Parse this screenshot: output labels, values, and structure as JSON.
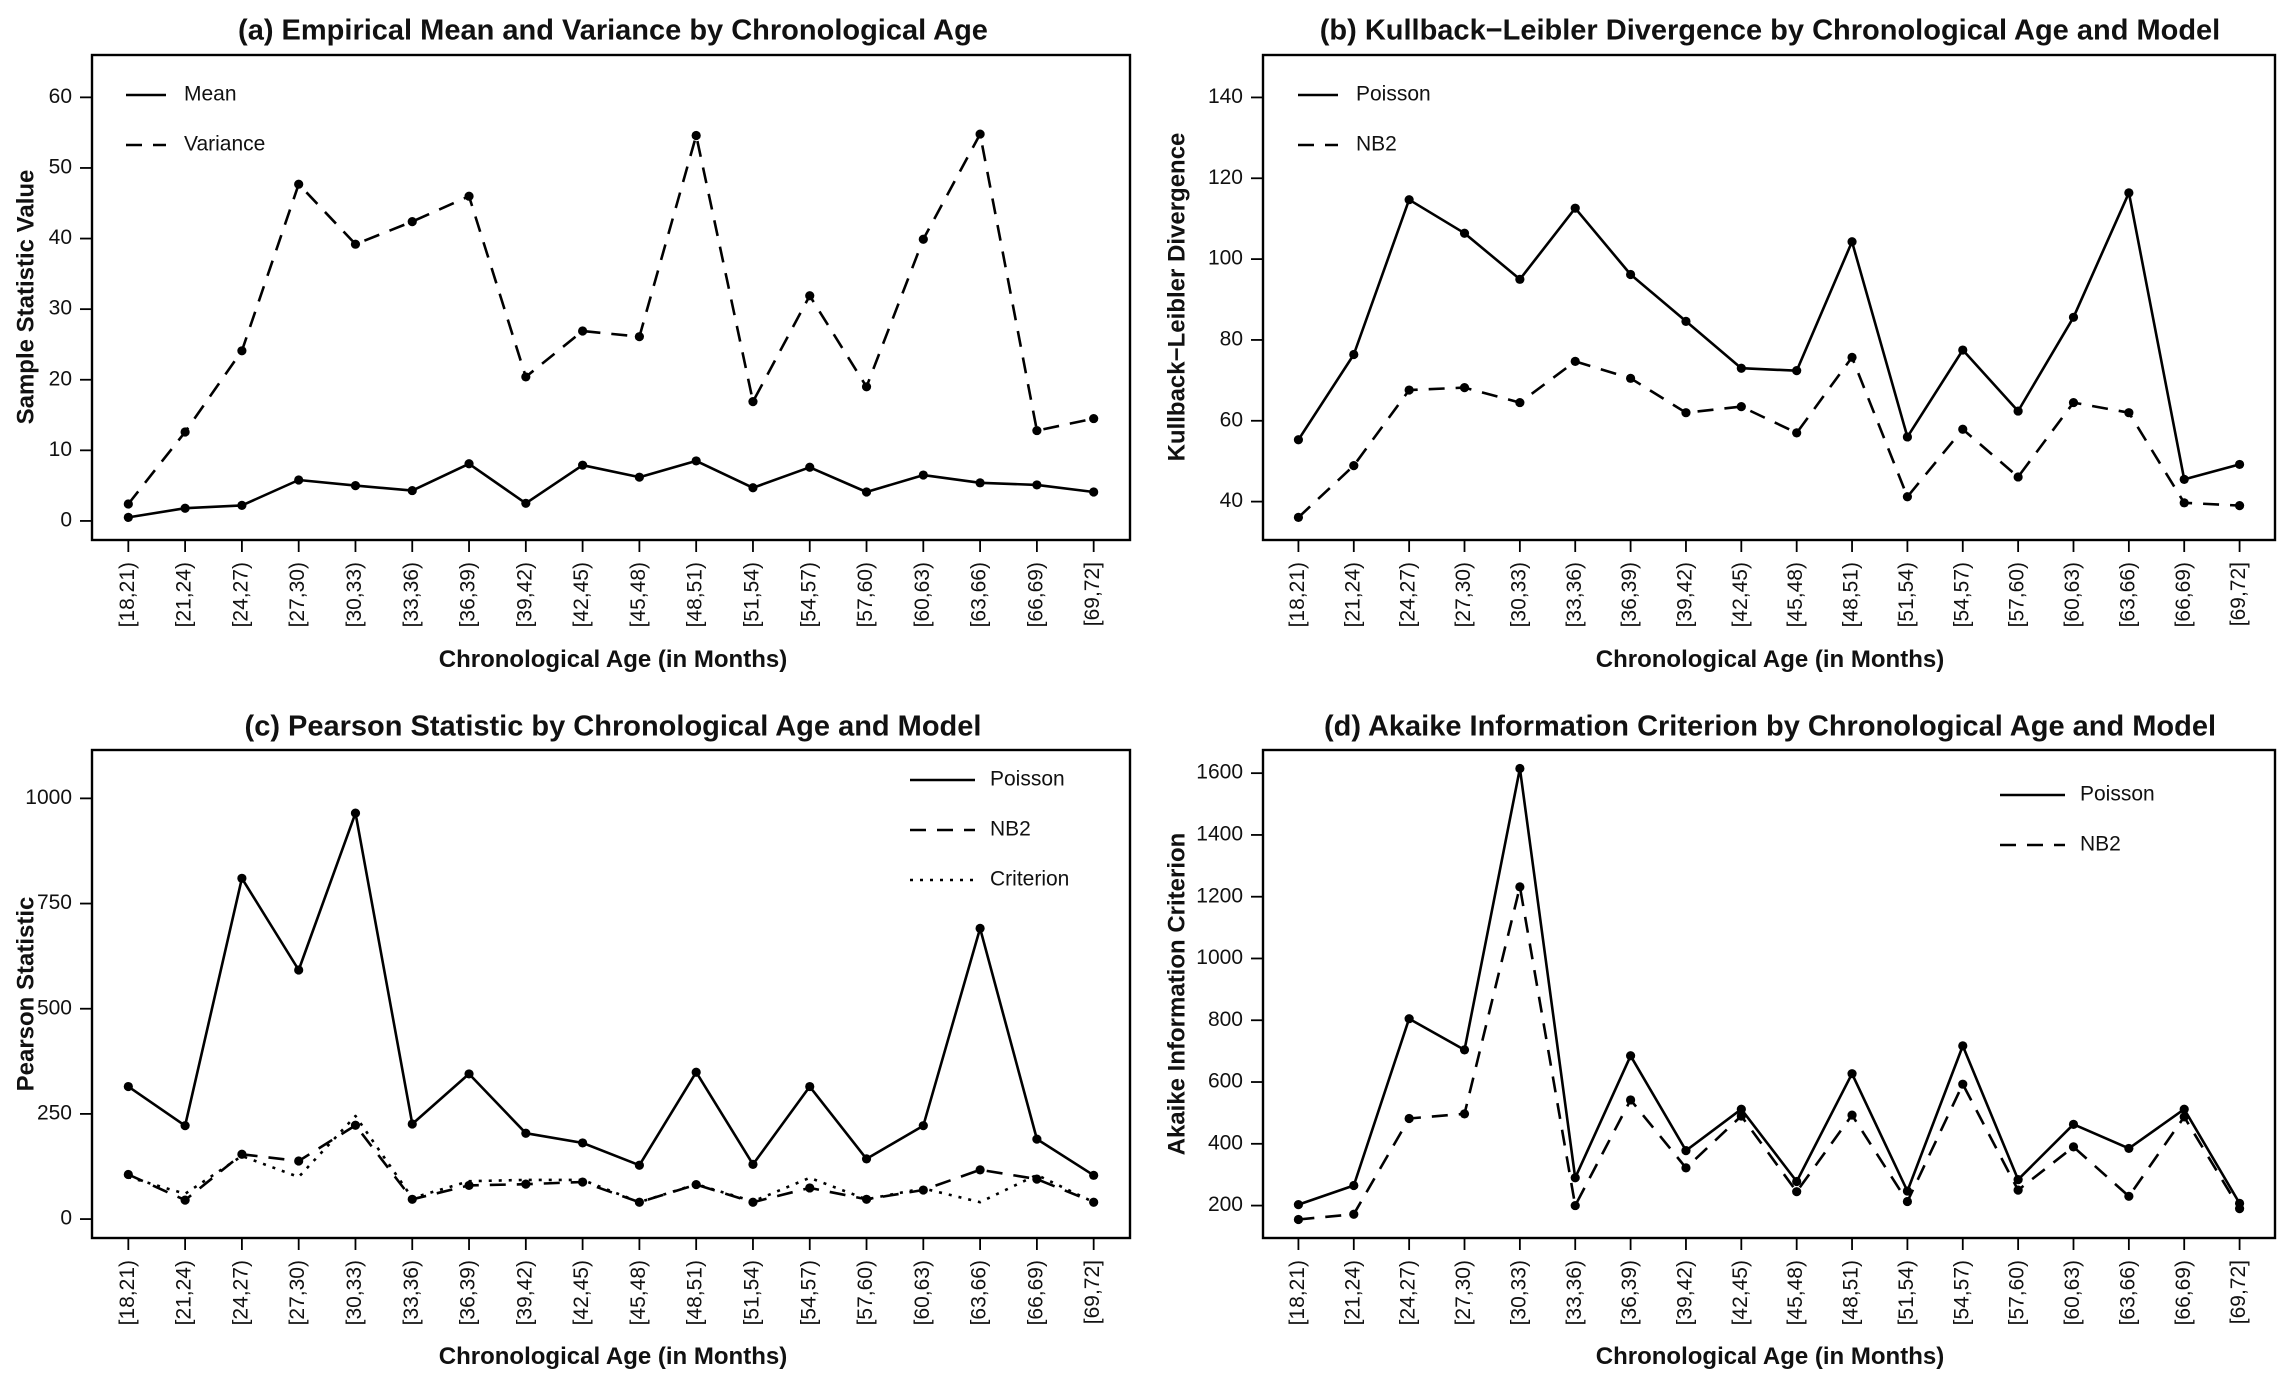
{
  "chart_data": [
    {
      "type": "line",
      "title": "(a) Empirical Mean and Variance by Chronological Age",
      "xlabel": "Chronological Age (in Months)",
      "ylabel": "Sample Statistic Value",
      "categories": [
        "[18,21)",
        "[21,24)",
        "[24,27)",
        "[27,30)",
        "[30,33)",
        "[33,36)",
        "[36,39)",
        "[39,42)",
        "[42,45)",
        "[45,48)",
        "[48,51)",
        "[51,54)",
        "[54,57)",
        "[57,60)",
        "[60,63)",
        "[63,66)",
        "[66,69)",
        "[69,72]"
      ],
      "ylim": [
        -2.7,
        66
      ],
      "yticks": [
        0,
        10,
        20,
        30,
        40,
        50,
        60
      ],
      "legend_position": "top-left",
      "grid": false,
      "series": [
        {
          "name": "Mean",
          "style": "solid",
          "values": [
            0.5,
            1.8,
            2.2,
            5.8,
            5.0,
            4.3,
            8.1,
            2.5,
            7.9,
            6.2,
            8.5,
            4.7,
            7.6,
            4.1,
            6.5,
            5.4,
            5.1,
            4.1
          ]
        },
        {
          "name": "Variance",
          "style": "dashed",
          "values": [
            2.4,
            12.6,
            24.1,
            47.7,
            39.2,
            42.4,
            46.0,
            20.4,
            26.9,
            26.1,
            54.6,
            16.9,
            31.9,
            19.0,
            39.9,
            54.8,
            12.8,
            14.5
          ]
        }
      ]
    },
    {
      "type": "line",
      "title": "(b) Kullback−Leibler Divergence by Chronological Age and Model",
      "xlabel": "Chronological Age (in Months)",
      "ylabel": "Kullback−Leibler Divergence",
      "categories": [
        "[18,21)",
        "[21,24)",
        "[24,27)",
        "[27,30)",
        "[30,33)",
        "[33,36)",
        "[36,39)",
        "[39,42)",
        "[42,45)",
        "[45,48)",
        "[48,51)",
        "[51,54)",
        "[54,57)",
        "[57,60)",
        "[60,63)",
        "[63,66)",
        "[66,69)",
        "[69,72]"
      ],
      "ylim": [
        30.5,
        150.5
      ],
      "yticks": [
        40,
        60,
        80,
        100,
        120,
        140
      ],
      "legend_position": "top-left",
      "grid": false,
      "series": [
        {
          "name": "Poisson",
          "style": "solid",
          "values": [
            55.3,
            76.4,
            114.7,
            106.4,
            95.0,
            112.6,
            96.2,
            84.6,
            73.0,
            72.4,
            104.3,
            56.0,
            77.5,
            62.4,
            85.6,
            116.4,
            45.5,
            49.2
          ]
        },
        {
          "name": "NB2",
          "style": "dashed",
          "values": [
            36.1,
            48.9,
            67.6,
            68.2,
            64.5,
            74.7,
            70.5,
            62.0,
            63.5,
            57.0,
            75.7,
            41.2,
            57.9,
            46.1,
            64.5,
            62.0,
            39.7,
            39.0
          ]
        }
      ]
    },
    {
      "type": "line",
      "title": "(c) Pearson Statistic by Chronological Age and Model",
      "xlabel": "Chronological Age (in Months)",
      "ylabel": "Pearson Statistic",
      "categories": [
        "[18,21)",
        "[21,24)",
        "[24,27)",
        "[27,30)",
        "[30,33)",
        "[33,36)",
        "[36,39)",
        "[39,42)",
        "[42,45)",
        "[45,48)",
        "[48,51)",
        "[51,54)",
        "[54,57)",
        "[57,60)",
        "[60,63)",
        "[63,66)",
        "[66,69)",
        "[69,72]"
      ],
      "ylim": [
        -45,
        1115
      ],
      "yticks": [
        0,
        250,
        500,
        750,
        1000
      ],
      "legend_position": "top-right",
      "grid": false,
      "series": [
        {
          "name": "Poisson",
          "style": "solid",
          "values": [
            315,
            222,
            810,
            592,
            965,
            226,
            345,
            204,
            181,
            128,
            349,
            130,
            315,
            143,
            222,
            691,
            190,
            104
          ]
        },
        {
          "name": "NB2",
          "style": "dashed",
          "values": [
            106,
            45,
            154,
            138,
            223,
            47,
            80,
            83,
            88,
            40,
            82,
            40,
            74,
            47,
            69,
            117,
            95,
            40
          ]
        },
        {
          "name": "Criterion",
          "style": "dotted",
          "marker": false,
          "values": [
            100,
            60,
            150,
            100,
            245,
            50,
            90,
            93,
            93,
            40,
            83,
            42,
            98,
            47,
            73,
            40,
            105,
            40
          ]
        }
      ]
    },
    {
      "type": "line",
      "title": "(d) Akaike Information Criterion by Chronological Age and Model",
      "xlabel": "Chronological Age (in Months)",
      "ylabel": "Akaike Information Criterion",
      "categories": [
        "[18,21)",
        "[21,24)",
        "[24,27)",
        "[27,30)",
        "[30,33)",
        "[33,36)",
        "[36,39)",
        "[39,42)",
        "[42,45)",
        "[45,48)",
        "[48,51)",
        "[51,54)",
        "[54,57)",
        "[57,60)",
        "[60,63)",
        "[63,66)",
        "[66,69)",
        "[69,72]"
      ],
      "ylim": [
        95,
        1675
      ],
      "yticks": [
        200,
        400,
        600,
        800,
        1000,
        1200,
        1400,
        1600
      ],
      "legend_position": "top-right",
      "grid": false,
      "series": [
        {
          "name": "Poisson",
          "style": "solid",
          "values": [
            203,
            265,
            805,
            704,
            1615,
            290,
            685,
            378,
            512,
            278,
            627,
            247,
            717,
            284,
            463,
            385,
            512,
            207
          ]
        },
        {
          "name": "NB2",
          "style": "dashed",
          "values": [
            155,
            172,
            482,
            497,
            1232,
            200,
            542,
            322,
            490,
            245,
            493,
            213,
            593,
            250,
            390,
            230,
            487,
            190
          ]
        }
      ]
    }
  ]
}
